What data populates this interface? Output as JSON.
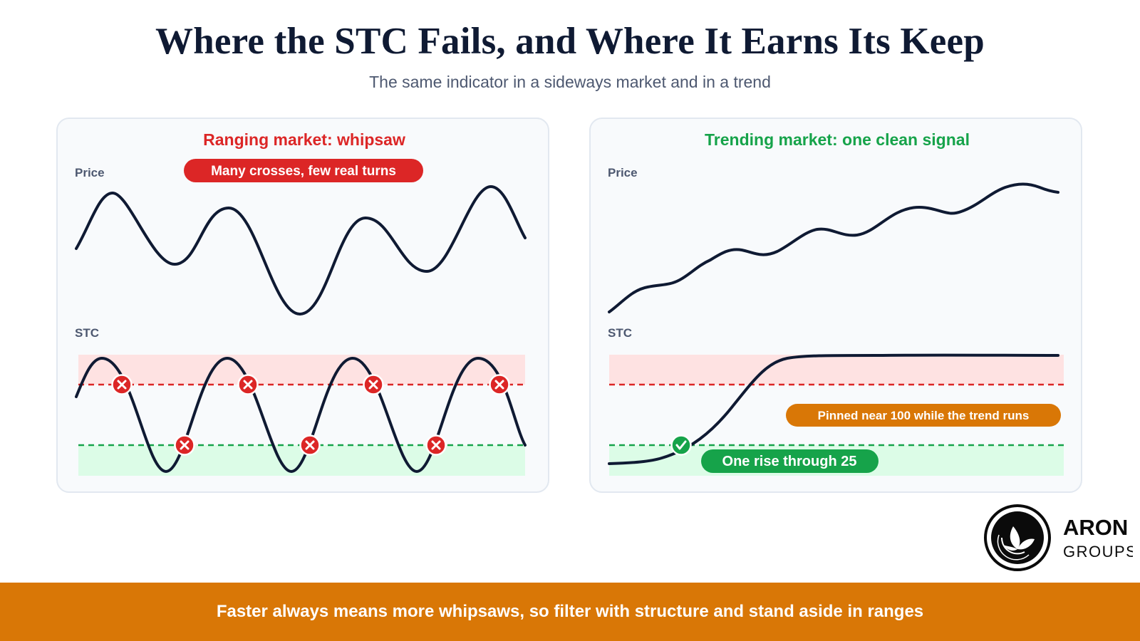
{
  "title": "Where the STC Fails, and Where It Earns Its Keep",
  "subtitle": "The same indicator in a sideways market and in a trend",
  "panels": {
    "ranging": {
      "heading": "Ranging market: whipsaw",
      "heading_color": "#dc2626",
      "badge": "Many crosses, few real turns",
      "badge_color": "#dc2626",
      "price_label": "Price",
      "stc_label": "STC",
      "failed_cross_icon": "x-circle-icon"
    },
    "trending": {
      "heading": "Trending market: one clean signal",
      "heading_color": "#16a34a",
      "price_label": "Price",
      "stc_label": "STC",
      "pinned_badge": "Pinned near 100 while the trend runs",
      "pinned_badge_color": "#d97706",
      "rise_badge": "One rise through 25",
      "rise_badge_color": "#16a34a",
      "valid_cross_icon": "check-circle-icon"
    }
  },
  "colors": {
    "line": "#0f1a33",
    "overbought_zone": "#fee2e2",
    "oversold_zone": "#dcfce7",
    "overbought_line": "#dc2626",
    "oversold_line": "#16a34a"
  },
  "footer": "Faster always means more whipsaws, so filter with structure and stand aside in ranges",
  "logo": {
    "brand": "ARON",
    "sub": "GROUPS",
    "icon": "leaf-circle-icon"
  }
}
